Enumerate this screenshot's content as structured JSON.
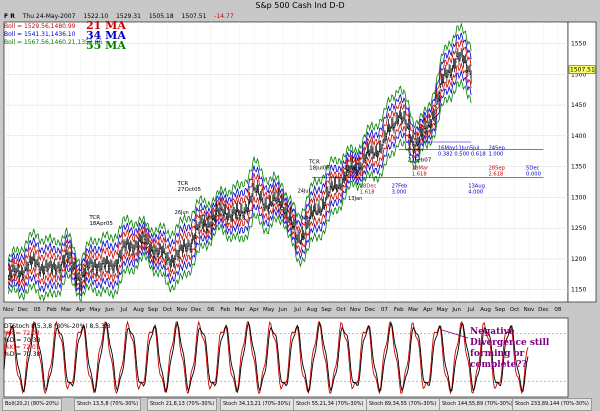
{
  "chart_title": "S&p 500 Cash Ind D-D",
  "toolbar": {
    "menu_label": "F R"
  },
  "ohlc": {
    "date": "Thu 24-May-2007",
    "open": "1522.10",
    "high": "1529.31",
    "low": "1505.18",
    "close": "1507.51",
    "change": "-14.77"
  },
  "price_legend": [
    {
      "text": "Boll = 1529.56,1480.99",
      "color": "#d00000"
    },
    {
      "text": "Boll = 1541.31,1436.10",
      "color": "#0000cc"
    },
    {
      "text": "Boll = 1567.56,1460.21,1352.86",
      "color": "#008000"
    }
  ],
  "ma_labels": [
    {
      "text": "21 MA",
      "color": "#d00000"
    },
    {
      "text": "34 MA",
      "color": "#0000cc"
    },
    {
      "text": "55 MA",
      "color": "#008000"
    }
  ],
  "last_price_tag": "1507.51",
  "indicator_legend": [
    {
      "text": "DTStoch 8,5,3,8 (80%-20%) 8,5,3,8",
      "color": "#000000"
    },
    {
      "text": "%K = 72.03",
      "color": "#d00000"
    },
    {
      "text": "%D = 70.38",
      "color": "#000000"
    },
    {
      "text": "%K = 72.03",
      "color": "#d00000"
    },
    {
      "text": "%D = 70.38",
      "color": "#000000"
    }
  ],
  "annotation": "Negative Divergence still forming or complete??",
  "bottom_tabs": [
    "Boll(20,2) (80%-20%)",
    "Stoch 13,5,8 (70%-30%)",
    "Stoch 21,8,13 (70%-30%)",
    "Stoch 34,13,21 (70%-30%)",
    "Stoch 55,21,34 (70%-30%)",
    "Stoch 89,34,55 (70%-30%)",
    "Stoch 144,55,89 (70%-30%)",
    "Stoch 233,89,144 (70%-30%)"
  ],
  "chart_data": {
    "type": "line",
    "title": "S&p 500 Cash Ind D-D",
    "x_ticks": [
      "Nov",
      "Dec",
      "05",
      "Feb",
      "Mar",
      "Apr",
      "May",
      "Jun",
      "Jul",
      "Aug",
      "Sep",
      "Oct",
      "Nov",
      "Dec",
      "06",
      "Feb",
      "Mar",
      "Apr",
      "May",
      "Jun",
      "Jul",
      "Aug",
      "Sep",
      "Oct",
      "Nov",
      "Dec",
      "07",
      "Feb",
      "Mar",
      "Apr",
      "May",
      "Jun",
      "Jul",
      "Aug",
      "Sep",
      "Oct",
      "Nov",
      "Dec",
      "08"
    ],
    "y_ticks": [
      1150,
      1200,
      1250,
      1300,
      1350,
      1400,
      1450,
      1500,
      1550
    ],
    "ylim": [
      1130,
      1585
    ],
    "price_points": [
      [
        0,
        1170
      ],
      [
        1,
        1185
      ],
      [
        2,
        1195
      ],
      [
        3,
        1180
      ],
      [
        4,
        1205
      ],
      [
        5,
        1170
      ],
      [
        6,
        1195
      ],
      [
        7,
        1185
      ],
      [
        8,
        1215
      ],
      [
        9,
        1230
      ],
      [
        10,
        1220
      ],
      [
        11,
        1200
      ],
      [
        12,
        1210
      ],
      [
        13,
        1245
      ],
      [
        14,
        1265
      ],
      [
        15,
        1280
      ],
      [
        16,
        1270
      ],
      [
        17,
        1310
      ],
      [
        18,
        1290
      ],
      [
        19,
        1295
      ],
      [
        20,
        1230
      ],
      [
        21,
        1270
      ],
      [
        22,
        1300
      ],
      [
        23,
        1330
      ],
      [
        24,
        1350
      ],
      [
        25,
        1370
      ],
      [
        26,
        1390
      ],
      [
        27,
        1440
      ],
      [
        28,
        1390
      ],
      [
        29,
        1410
      ],
      [
        30,
        1485
      ],
      [
        31,
        1530
      ],
      [
        32,
        1508
      ]
    ],
    "trend_labels": [
      {
        "lines": [
          "TCR",
          "18Apr05"
        ],
        "x": 5.6,
        "y": 1265
      },
      {
        "lines": [
          "TCR",
          "27Oct05"
        ],
        "x": 11.7,
        "y": 1320
      },
      {
        "lines": [
          "TCR",
          "18Jul06"
        ],
        "x": 20.8,
        "y": 1355
      },
      {
        "lines": [
          "22Feb07"
        ],
        "x": 27.6,
        "y": 1358
      }
    ],
    "fib_labels": [
      {
        "lines": [
          "16May11Jun5Jul",
          "0.382 0.500 0.618"
        ],
        "x": 29.7,
        "y": 1378,
        "color": "#0000cc"
      },
      {
        "lines": [
          "24Sep",
          "1.000"
        ],
        "x": 33.2,
        "y": 1378,
        "color": "#0000cc"
      },
      {
        "lines": [
          "16Nov",
          "1.000"
        ],
        "x": 23.2,
        "y": 1345,
        "color": "#0000cc"
      },
      {
        "lines": [
          "28Mar",
          "1.618"
        ],
        "x": 27.9,
        "y": 1345,
        "color": "#d00000"
      },
      {
        "lines": [
          "28Sep",
          "2.618"
        ],
        "x": 33.2,
        "y": 1345,
        "color": "#d00000"
      },
      {
        "lines": [
          "5Dec",
          "0.000"
        ],
        "x": 35.8,
        "y": 1345,
        "color": "#0000cc"
      },
      {
        "lines": [
          "18Dec",
          "1.618"
        ],
        "x": 24.3,
        "y": 1316,
        "color": "#d00000"
      },
      {
        "lines": [
          "27Feb",
          "3.000"
        ],
        "x": 26.5,
        "y": 1316,
        "color": "#0000cc"
      },
      {
        "lines": [
          "13Aug",
          "4.000"
        ],
        "x": 31.8,
        "y": 1316,
        "color": "#0000cc"
      }
    ],
    "small_marks": [
      {
        "text": "24Jul",
        "x": 20.0,
        "y": 1308
      },
      {
        "text": "13Jan",
        "x": 23.5,
        "y": 1296
      },
      {
        "text": "26Jun",
        "x": 11.5,
        "y": 1273
      },
      {
        "text": "1.000",
        "x": 13.3,
        "y": 1264
      },
      {
        "text": "1.618",
        "x": 15.4,
        "y": 1264
      },
      {
        "text": "1.000",
        "x": 20.2,
        "y": 1264
      }
    ],
    "stoch_levels": [
      80,
      20
    ]
  }
}
